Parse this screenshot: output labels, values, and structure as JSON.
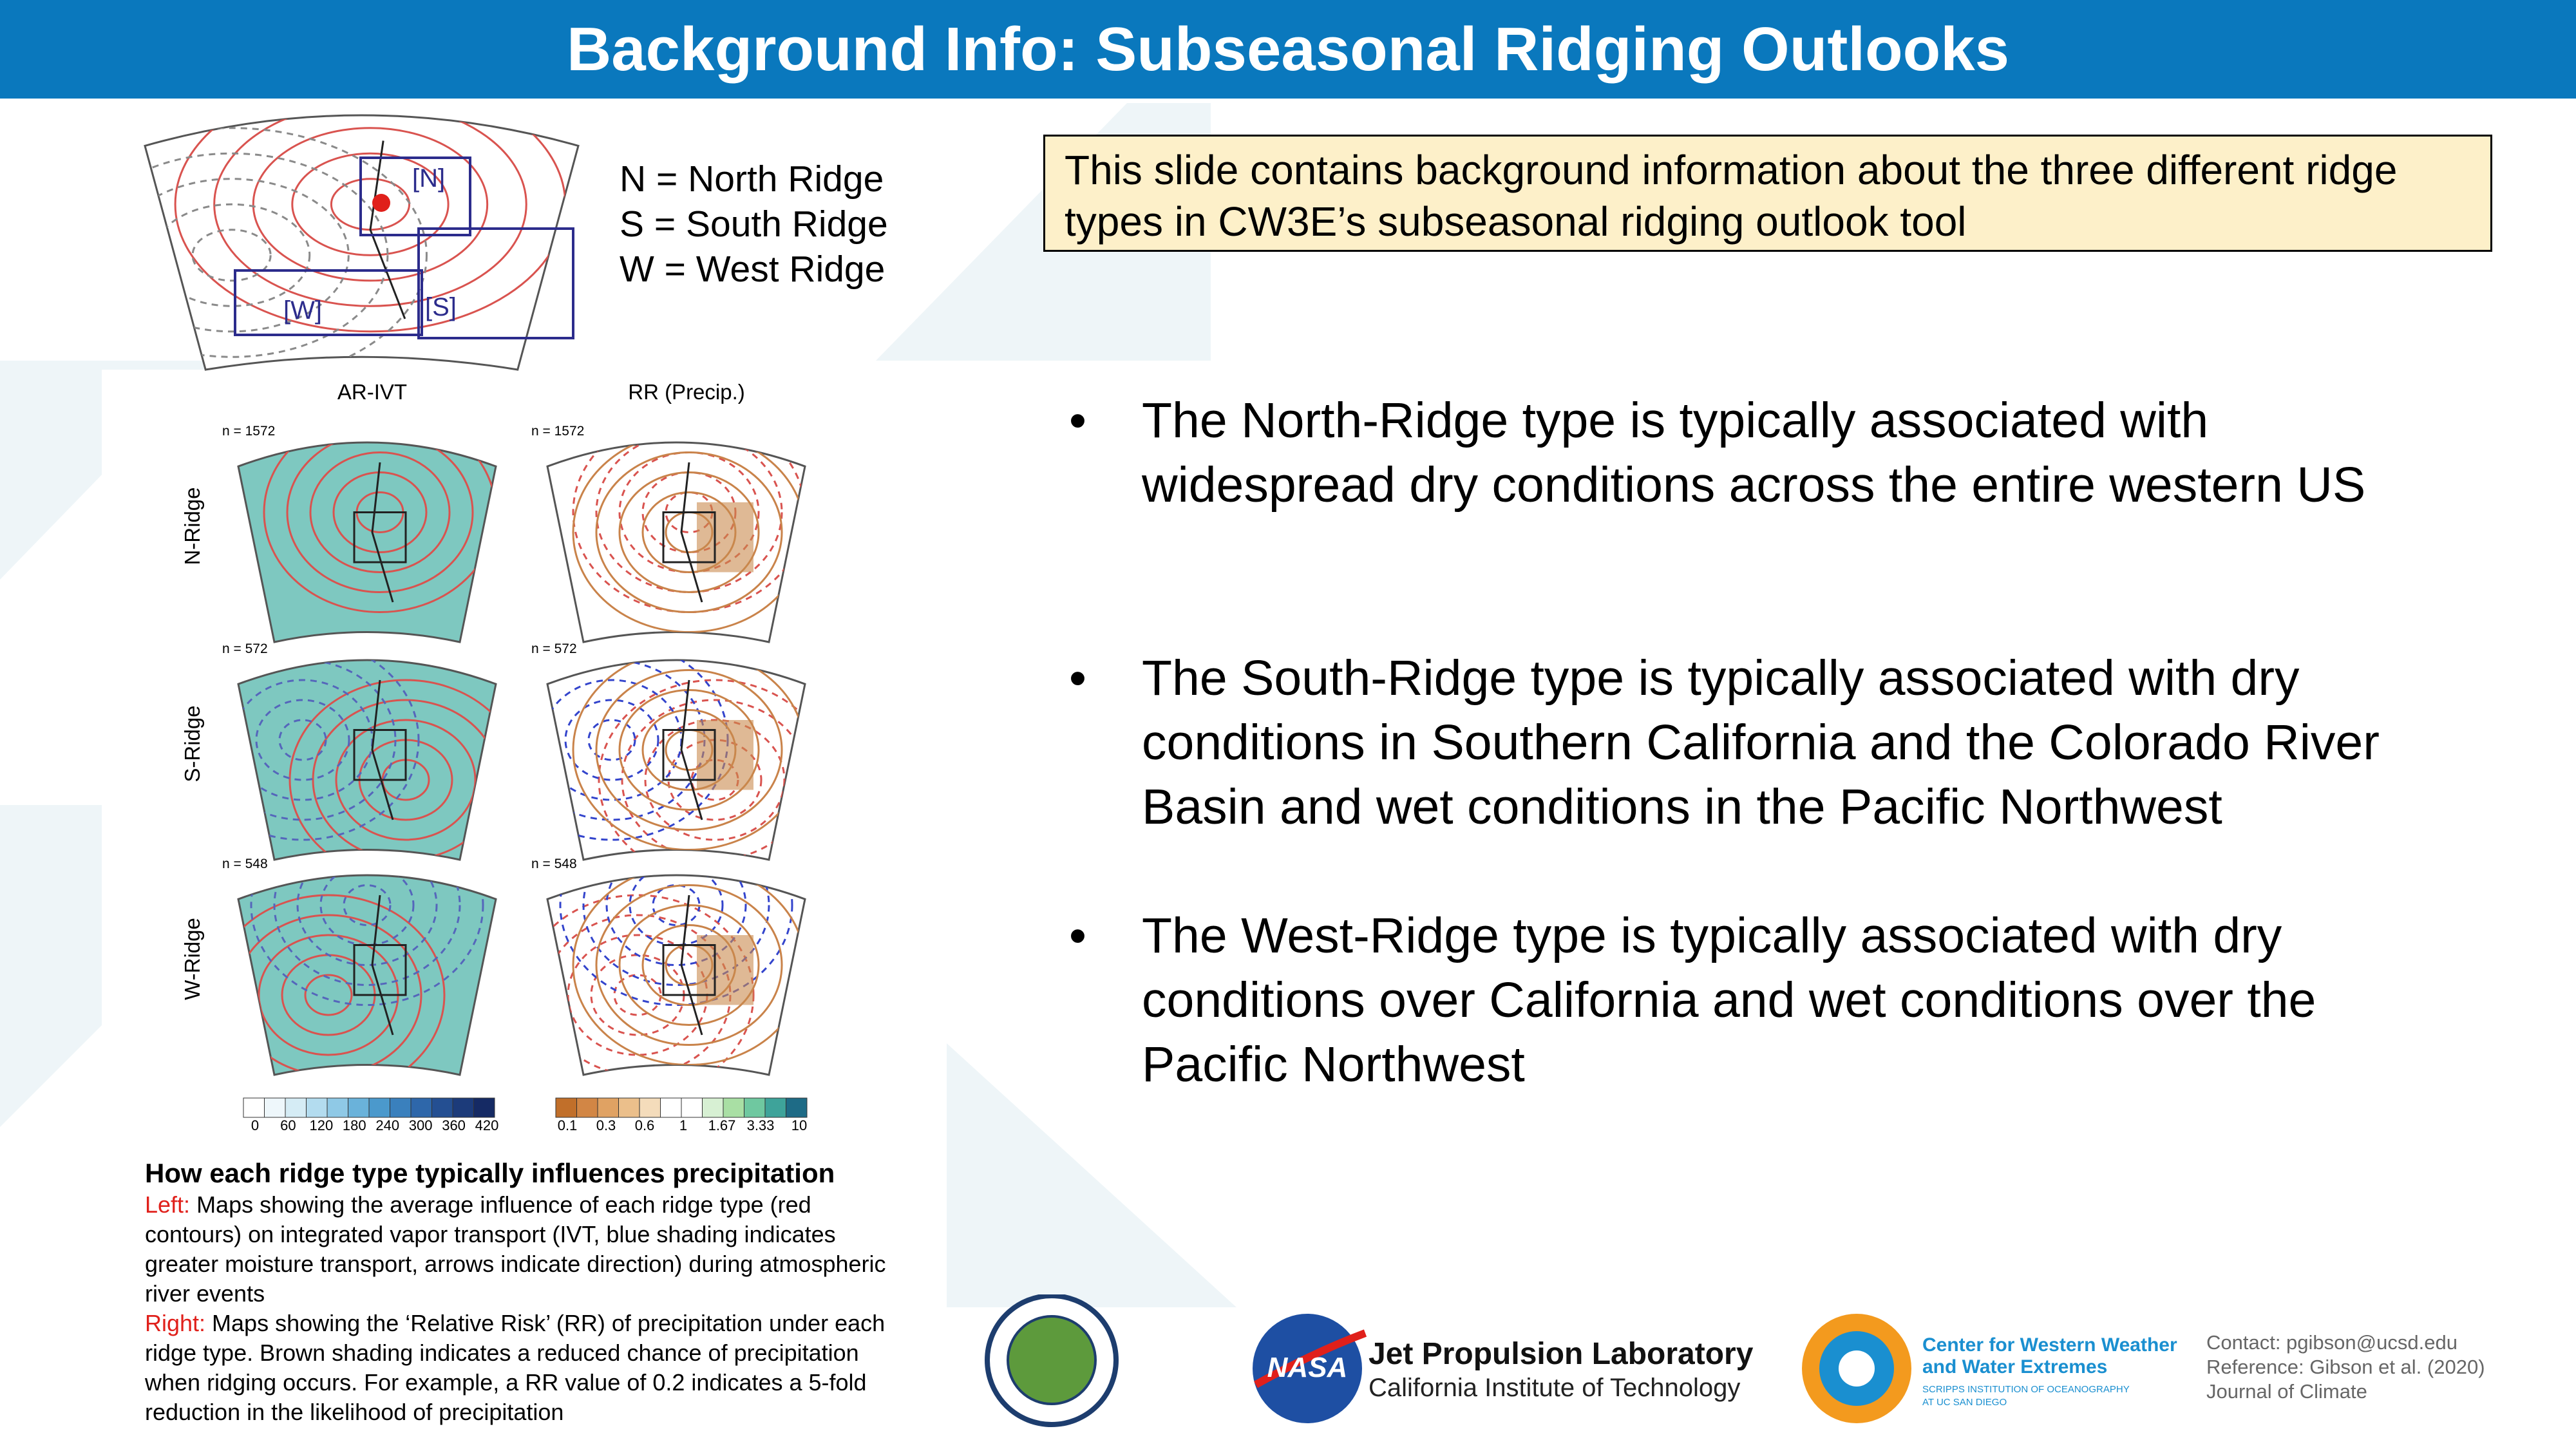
{
  "header": {
    "title": "Background Info: Subseasonal Ridging Outlooks"
  },
  "region_map": {
    "labels": [
      "[N]",
      "[S]",
      "[W]"
    ]
  },
  "legend": [
    "N = North Ridge",
    "S = South Ridge",
    "W = West Ridge"
  ],
  "info_box": "This slide contains background information about the three different ridge types in CW3E’s subseasonal ridging outlook tool",
  "figure": {
    "columns": [
      "AR-IVT",
      "RR (Precip.)"
    ],
    "rows": [
      {
        "label": "N-Ridge",
        "n": "n = 1572"
      },
      {
        "label": "S-Ridge",
        "n": "n = 572"
      },
      {
        "label": "W-Ridge",
        "n": "n = 548"
      }
    ],
    "ivt_ticks": [
      0,
      60,
      120,
      180,
      240,
      300,
      360,
      420
    ],
    "rr_ticks": [
      0.1,
      0.3,
      0.6,
      1,
      1.67,
      3.33,
      10
    ]
  },
  "caption": {
    "heading": "How each ridge type typically influences precipitation",
    "left_label": "Left:",
    "left_text": " Maps showing the average influence of each ridge type (red contours) on integrated vapor transport (IVT, blue shading indicates greater moisture transport, arrows indicate direction) during atmospheric river events",
    "right_label": "Right:",
    "right_text": " Maps showing the ‘Relative Risk’ (RR) of precipitation under each ridge type. Brown shading indicates a reduced chance of precipitation when ridging occurs. For example, a RR value of 0.2 indicates a 5-fold reduction in the likelihood of precipitation"
  },
  "bullets": [
    "The North-Ridge type is typically associated with widespread dry conditions across the entire western US",
    "The South-Ridge type is typically associated with dry conditions in Southern California and the Colorado River Basin and wet conditions in the Pacific Northwest",
    "The West-Ridge type is typically associated with dry conditions over California and wet conditions over the Pacific Northwest"
  ],
  "logos": {
    "nasa": "NASA",
    "jpl": "Jet Propulsion Laboratory",
    "caltech": "California Institute of Technology",
    "cw3e_line1": "Center for Western Weather",
    "cw3e_line2": "and Water Extremes",
    "cw3e_sub1": "SCRIPPS INSTITUTION OF OCEANOGRAPHY",
    "cw3e_sub2": "AT UC SAN DIEGO"
  },
  "contact": [
    "Contact: pgibson@ucsd.edu",
    "Reference: Gibson et al. (2020)",
    "Journal of Climate"
  ]
}
